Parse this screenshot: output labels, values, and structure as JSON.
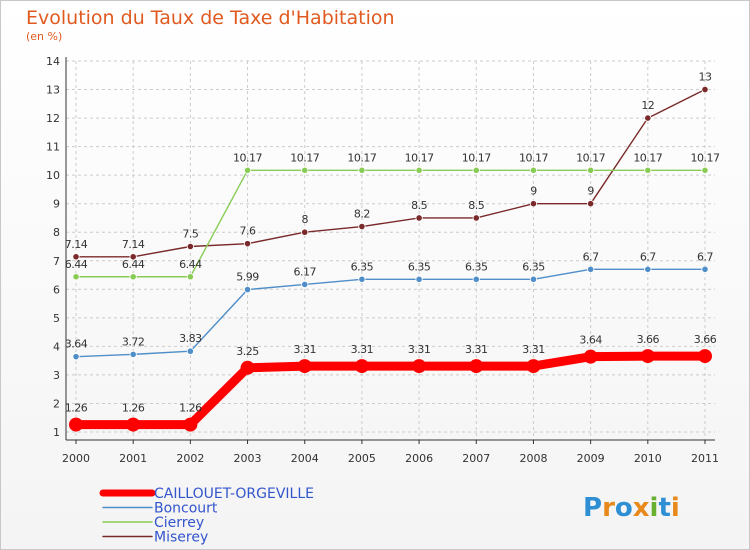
{
  "chart_data": {
    "type": "line",
    "title": "Evolution du Taux de Taxe d'Habitation",
    "subtitle": "(en %)",
    "xlabel": "",
    "ylabel": "",
    "ylim": [
      1,
      14
    ],
    "y_ticks": [
      "1",
      "2",
      "3",
      "4",
      "5",
      "6",
      "7",
      "8",
      "9",
      "10",
      "11",
      "12",
      "13",
      "14"
    ],
    "categories": [
      "2000",
      "2001",
      "2002",
      "2003",
      "2004",
      "2005",
      "2006",
      "2007",
      "2008",
      "2009",
      "2010",
      "2011"
    ],
    "grid": true,
    "legend_position": "bottom-left",
    "series": [
      {
        "name": "CAILLOUET-ORGEVILLE",
        "color": "#ff0000",
        "values": [
          1.26,
          1.26,
          1.26,
          3.25,
          3.31,
          3.31,
          3.31,
          3.31,
          3.31,
          3.64,
          3.66,
          3.66
        ],
        "labels": [
          "1.26",
          "1.26",
          "1.26",
          "3.25",
          "3.31",
          "3.31",
          "3.31",
          "3.31",
          "3.31",
          "3.64",
          "3.66",
          "3.66"
        ]
      },
      {
        "name": "Boncourt",
        "color": "#4f8ec8",
        "values": [
          3.64,
          3.72,
          3.83,
          5.99,
          6.17,
          6.35,
          6.35,
          6.35,
          6.35,
          6.7,
          6.7,
          6.7
        ],
        "labels": [
          "3.64",
          "3.72",
          "3.83",
          "5.99",
          "6.17",
          "6.35",
          "6.35",
          "6.35",
          "6.35",
          "6.7",
          "6.7",
          "6.7"
        ]
      },
      {
        "name": "Cierrey",
        "color": "#88cc55",
        "values": [
          6.44,
          6.44,
          6.44,
          10.17,
          10.17,
          10.17,
          10.17,
          10.17,
          10.17,
          10.17,
          10.17,
          10.17
        ],
        "labels": [
          "6.44",
          "6.44",
          "6.44",
          "10.17",
          "10.17",
          "10.17",
          "10.17",
          "10.17",
          "10.17",
          "10.17",
          "10.17",
          "10.17"
        ]
      },
      {
        "name": "Miserey",
        "color": "#7a2a2a",
        "values": [
          7.14,
          7.14,
          7.5,
          7.6,
          8,
          8.2,
          8.5,
          8.5,
          9,
          9,
          12,
          13
        ],
        "labels": [
          "7.14",
          "7.14",
          "7.5",
          "7.6",
          "8",
          "8.2",
          "8.5",
          "8.5",
          "9",
          "9",
          "12",
          "13"
        ]
      }
    ]
  },
  "logo": {
    "letters": [
      "P",
      "r",
      "o",
      "x",
      "i",
      "t",
      "i"
    ],
    "colors": [
      "#2e8fd4",
      "#e8891c",
      "#2e8fd4",
      "#e8891c",
      "#6ab030",
      "#2e8fd4",
      "#e8891c"
    ]
  }
}
